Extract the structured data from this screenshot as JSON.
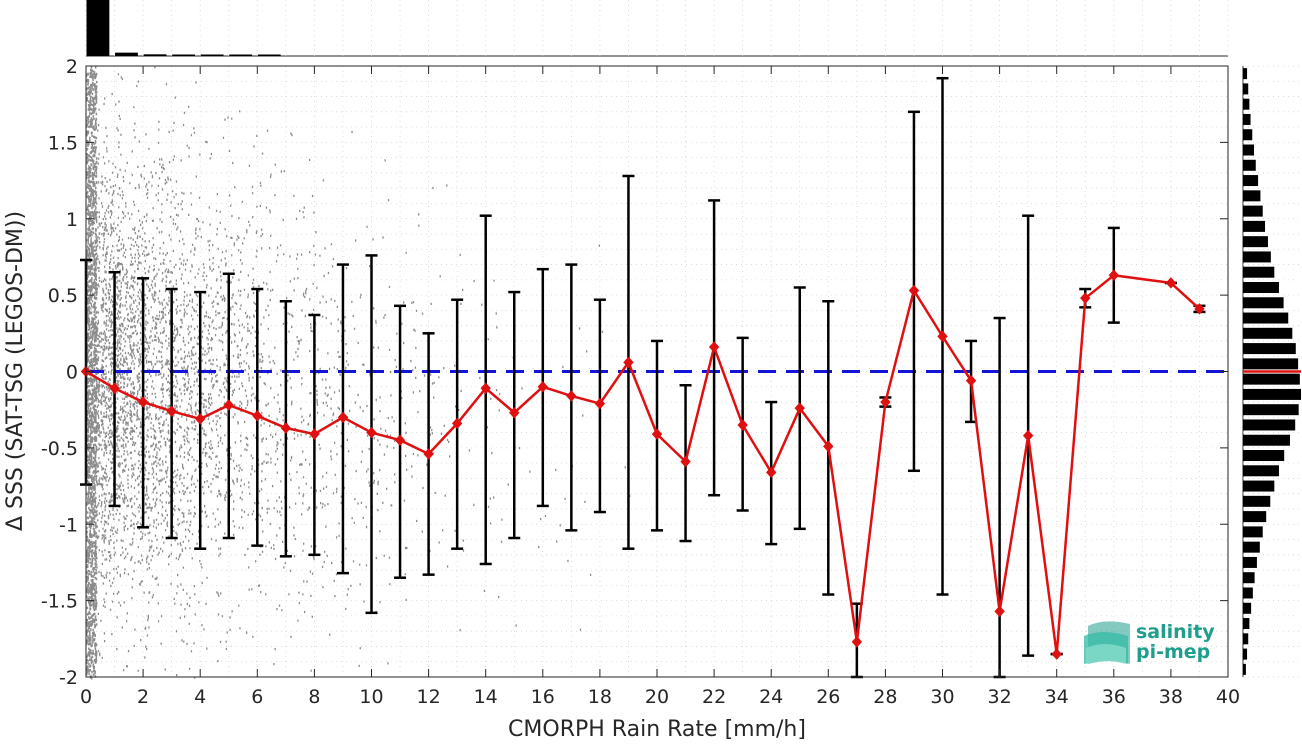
{
  "chart_data": {
    "type": "scatter",
    "xlabel": "CMORPH Rain Rate [mm/h]",
    "ylabel": "Δ SSS (SAT-TSG (LEGOS-DM))",
    "xlim": [
      0,
      40
    ],
    "ylim": [
      -2,
      2
    ],
    "xticks": [
      "0",
      "2",
      "4",
      "6",
      "8",
      "10",
      "12",
      "14",
      "16",
      "18",
      "20",
      "22",
      "24",
      "26",
      "28",
      "30",
      "32",
      "34",
      "36",
      "38",
      "40"
    ],
    "yticks": [
      "2",
      "1.5",
      "1",
      "0.5",
      "0",
      "-0.5",
      "-1",
      "-1.5",
      "-2"
    ],
    "grid": true,
    "reference_line": {
      "y": 0,
      "style": "dashed",
      "color": "#1414d8"
    },
    "series": [
      {
        "color": "#e01010",
        "marker": "diamond",
        "x": [
          0,
          1,
          2,
          3,
          4,
          5,
          6,
          7,
          8,
          9,
          10,
          11,
          12,
          13,
          14,
          15,
          16,
          17,
          18,
          19,
          20,
          21,
          22,
          23,
          24,
          25,
          26,
          27,
          28,
          29,
          30,
          31,
          32,
          33,
          34,
          35,
          36,
          38,
          39
        ],
        "mean": [
          0,
          -0.11,
          -0.2,
          -0.26,
          -0.31,
          -0.22,
          -0.29,
          -0.37,
          -0.41,
          -0.3,
          -0.4,
          -0.45,
          -0.54,
          -0.34,
          -0.11,
          -0.27,
          -0.1,
          -0.16,
          -0.21,
          0.06,
          -0.41,
          -0.59,
          0.16,
          -0.35,
          -0.66,
          -0.24,
          -0.49,
          -1.77,
          -0.2,
          0.53,
          0.23,
          -0.06,
          -1.57,
          -0.42,
          -1.85,
          0.48,
          0.63,
          0.58,
          0.41
        ],
        "err_low": [
          -0.74,
          -0.88,
          -1.02,
          -1.09,
          -1.16,
          -1.09,
          -1.14,
          -1.21,
          -1.2,
          -1.32,
          -1.58,
          -1.35,
          -1.33,
          -1.16,
          -1.26,
          -1.09,
          -0.88,
          -1.04,
          -0.92,
          -1.16,
          -1.04,
          -1.11,
          -0.81,
          -0.91,
          -1.13,
          -1.03,
          -1.46,
          -2.0,
          -0.23,
          -0.65,
          -1.46,
          -0.33,
          -2.0,
          -1.86,
          -1.85,
          0.42,
          0.32,
          0.58,
          0.39
        ],
        "err_high": [
          0.73,
          0.65,
          0.61,
          0.54,
          0.52,
          0.64,
          0.54,
          0.46,
          0.37,
          0.7,
          0.76,
          0.43,
          0.25,
          0.47,
          1.02,
          0.52,
          0.67,
          0.7,
          0.47,
          1.28,
          0.2,
          -0.09,
          1.12,
          0.22,
          -0.2,
          0.55,
          0.46,
          -1.52,
          -0.17,
          1.7,
          1.92,
          0.2,
          0.35,
          1.02,
          -1.85,
          0.54,
          0.94,
          0.58,
          0.43
        ]
      }
    ],
    "scatter_color": "#8c8c8c",
    "top_histogram": {
      "color": "#000000",
      "bins_x": [
        0,
        1,
        2,
        3,
        4,
        5,
        6
      ],
      "relative_counts": [
        1.0,
        0.06,
        0.03,
        0.015,
        0.01,
        0.006,
        0.004
      ]
    },
    "right_histogram": {
      "color": "#000000",
      "mean_line_color": "#e01010",
      "bins_y": [
        1.95,
        1.85,
        1.75,
        1.65,
        1.55,
        1.45,
        1.35,
        1.25,
        1.15,
        1.05,
        0.95,
        0.85,
        0.75,
        0.65,
        0.55,
        0.45,
        0.35,
        0.25,
        0.15,
        0.05,
        -0.05,
        -0.15,
        -0.25,
        -0.35,
        -0.45,
        -0.55,
        -0.65,
        -0.75,
        -0.85,
        -0.95,
        -1.05,
        -1.15,
        -1.25,
        -1.35,
        -1.45,
        -1.55,
        -1.65,
        -1.75,
        -1.85,
        -1.95
      ],
      "relative_counts": [
        0.07,
        0.09,
        0.11,
        0.13,
        0.16,
        0.19,
        0.22,
        0.26,
        0.3,
        0.34,
        0.38,
        0.43,
        0.48,
        0.54,
        0.62,
        0.7,
        0.78,
        0.85,
        0.91,
        0.95,
        0.98,
        1.0,
        0.96,
        0.9,
        0.81,
        0.71,
        0.62,
        0.54,
        0.47,
        0.4,
        0.34,
        0.29,
        0.24,
        0.2,
        0.17,
        0.14,
        0.11,
        0.09,
        0.07,
        0.05
      ]
    },
    "mean_marker_y": 0
  },
  "logo": {
    "line1": "salinity",
    "line2": "pi-mep",
    "color": "#1f9e8d"
  }
}
